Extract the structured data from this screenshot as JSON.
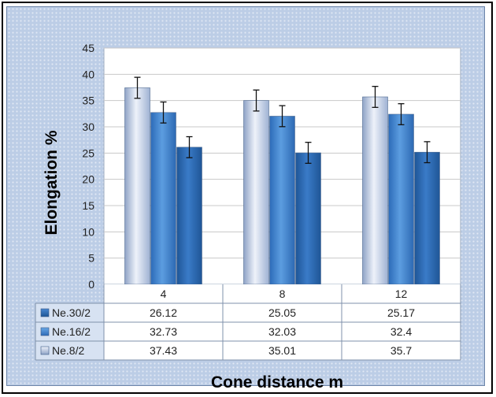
{
  "chart_data": {
    "type": "bar",
    "title": "",
    "xlabel": "Cone distance m",
    "ylabel": "Elongation %",
    "ylim": [
      0,
      45
    ],
    "yticks": [
      0,
      5,
      10,
      15,
      20,
      25,
      30,
      35,
      40,
      45
    ],
    "categories": [
      "4",
      "8",
      "12"
    ],
    "grid": true,
    "legend": "data-table",
    "error_bar": 2,
    "series": [
      {
        "name": "Ne.8/2",
        "values": [
          37.43,
          35.01,
          35.7
        ],
        "color": "#c9d4ea"
      },
      {
        "name": "Ne.16/2",
        "values": [
          32.73,
          32.03,
          32.4
        ],
        "color": "#3f84d2"
      },
      {
        "name": "Ne.30/2",
        "values": [
          26.12,
          25.05,
          25.17
        ],
        "color": "#2966ad"
      }
    ],
    "table_rows": [
      {
        "name": "Ne.30/2",
        "values": [
          "26.12",
          "25.05",
          "25.17"
        ]
      },
      {
        "name": "Ne.16/2",
        "values": [
          "32.73",
          "32.03",
          "32.4"
        ]
      },
      {
        "name": "Ne.8/2",
        "values": [
          "37.43",
          "35.01",
          "35.7"
        ]
      }
    ]
  }
}
